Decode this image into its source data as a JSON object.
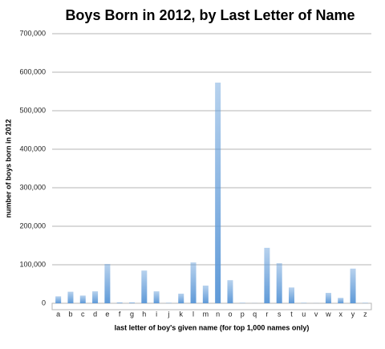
{
  "chart_data": {
    "type": "bar",
    "title": "Boys Born in 2012, by Last Letter of Name",
    "x_label": "last letter of boy's given name (for top 1,000 names only)",
    "y_label": "number of boys born in 2012",
    "categories": [
      "a",
      "b",
      "c",
      "d",
      "e",
      "f",
      "g",
      "h",
      "i",
      "j",
      "k",
      "l",
      "m",
      "n",
      "o",
      "p",
      "q",
      "r",
      "s",
      "t",
      "u",
      "v",
      "w",
      "x",
      "y",
      "z"
    ],
    "values": [
      18000,
      30000,
      20000,
      31000,
      102000,
      2000,
      2000,
      85000,
      31000,
      1000,
      25000,
      106000,
      46000,
      573000,
      60000,
      1000,
      500,
      144000,
      104000,
      41000,
      1000,
      500,
      27000,
      14000,
      90000,
      1000
    ],
    "color": "#5f9ad8",
    "ylim": [
      0,
      700000
    ],
    "yticks": [
      0,
      {
        "value": 100000,
        "label": "100,000"
      },
      {
        "value": 200000,
        "label": "200,000"
      },
      {
        "value": 300000,
        "label": "300,000"
      },
      {
        "value": 400000,
        "label": "400,000"
      },
      {
        "value": 500000,
        "label": "500,000"
      },
      {
        "value": 600000,
        "label": "600,000"
      },
      {
        "value": 700000,
        "label": "700,000"
      }
    ],
    "grid": true
  }
}
